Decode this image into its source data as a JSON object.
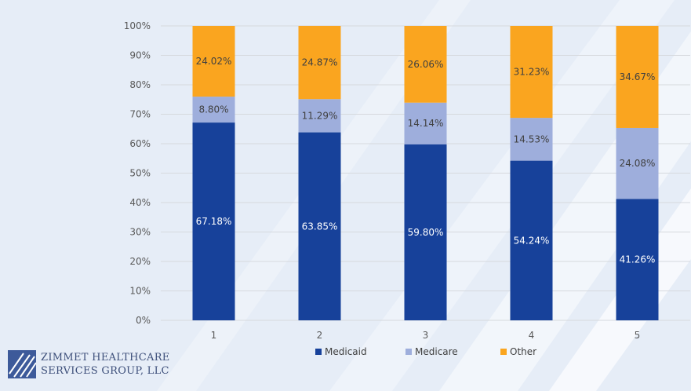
{
  "logo": {
    "line1": "ZIMMET HEALTHCARE",
    "line2": "SERVICES GROUP, LLC"
  },
  "colors": {
    "Medicaid": "#17419a",
    "Medicare": "#9eaedc",
    "Other": "#faa51f"
  },
  "chart_data": {
    "type": "bar",
    "stacked": true,
    "categories": [
      "1",
      "2",
      "3",
      "4",
      "5"
    ],
    "series": [
      {
        "name": "Medicaid",
        "values": [
          67.18,
          63.85,
          59.8,
          54.24,
          41.26
        ],
        "labels": [
          "67.18%",
          "63.85%",
          "59.80%",
          "54.24%",
          "41.26%"
        ]
      },
      {
        "name": "Medicare",
        "values": [
          8.8,
          11.29,
          14.14,
          14.53,
          24.08
        ],
        "labels": [
          "8.80%",
          "11.29%",
          "14.14%",
          "14.53%",
          "24.08%"
        ]
      },
      {
        "name": "Other",
        "values": [
          24.02,
          24.87,
          26.06,
          31.23,
          34.67
        ],
        "labels": [
          "24.02%",
          "24.87%",
          "26.06%",
          "31.23%",
          "34.67%"
        ]
      }
    ],
    "y_ticks": [
      "0%",
      "10%",
      "20%",
      "30%",
      "40%",
      "50%",
      "60%",
      "70%",
      "80%",
      "90%",
      "100%"
    ],
    "ylim": [
      0,
      100
    ],
    "grid": true,
    "legend": "bottom-center"
  }
}
